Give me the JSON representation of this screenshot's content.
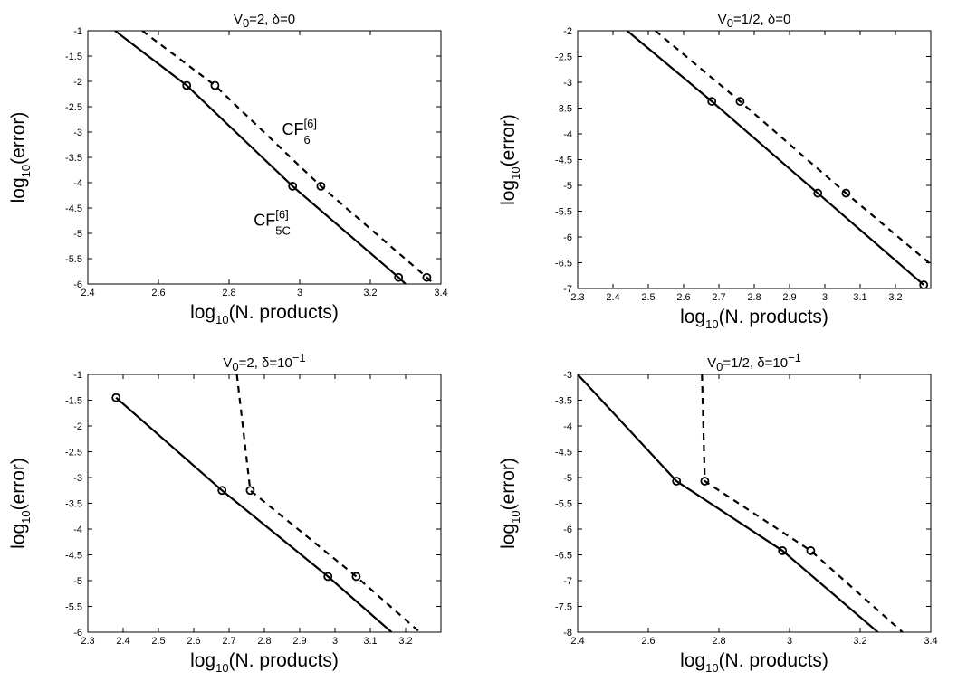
{
  "chart_data": [
    {
      "type": "line",
      "title": {
        "base": "V",
        "sub": "0",
        "rest": "=2,  δ=0"
      },
      "xlabel": {
        "base": "log",
        "sub": "10",
        "rest": "(N. products)"
      },
      "ylabel": {
        "base": "log",
        "sub": "10",
        "rest": "(error)"
      },
      "xlim": [
        2.4,
        3.4
      ],
      "ylim": [
        -6,
        -1
      ],
      "xticks": [
        "2.4",
        "2.6",
        "2.8",
        "3",
        "3.2",
        "3.4"
      ],
      "yticks": [
        "-1",
        "-1.5",
        "-2",
        "-2.5",
        "-3",
        "-3.5",
        "-4",
        "-4.5",
        "-5",
        "-5.5",
        "-6"
      ],
      "series": [
        {
          "name": "CF[6] 5C",
          "style": "solid",
          "x": [
            2.477,
            2.68,
            2.98,
            3.28,
            3.3
          ],
          "y": [
            -1.0,
            -2.08,
            -4.07,
            -5.87,
            -6.0
          ],
          "markers": [
            1,
            2,
            3
          ]
        },
        {
          "name": "CF[6] 6",
          "style": "dashed",
          "x": [
            2.554,
            2.76,
            3.06,
            3.36,
            3.38
          ],
          "y": [
            -1.0,
            -2.08,
            -4.07,
            -5.87,
            -6.0
          ],
          "markers": [
            1,
            2,
            3
          ]
        }
      ],
      "annotations": [
        {
          "base": "CF",
          "sup": "[6]",
          "sub": "6",
          "x": 2.95,
          "y": -3.05
        },
        {
          "base": "CF",
          "sup": "[6]",
          "sub": "5C",
          "x": 2.87,
          "y": -4.85
        }
      ]
    },
    {
      "type": "line",
      "title": {
        "base": "V",
        "sub": "0",
        "rest": "=1/2,  δ=0"
      },
      "xlabel": {
        "base": "log",
        "sub": "10",
        "rest": "(N. products)"
      },
      "ylabel": {
        "base": "log",
        "sub": "10",
        "rest": "(error)"
      },
      "xlim": [
        2.3,
        3.3
      ],
      "ylim": [
        -7,
        -2
      ],
      "xticks": [
        "2.3",
        "2.4",
        "2.5",
        "2.6",
        "2.7",
        "2.8",
        "2.9",
        "3",
        "3.1",
        "3.2"
      ],
      "yticks": [
        "-2",
        "-2.5",
        "-3",
        "-3.5",
        "-4",
        "-4.5",
        "-5",
        "-5.5",
        "-6",
        "-6.5",
        "-7"
      ],
      "series": [
        {
          "name": "CF[6] 5C",
          "style": "solid",
          "x": [
            2.44,
            2.68,
            2.98,
            3.28
          ],
          "y": [
            -2.0,
            -3.37,
            -5.15,
            -6.93
          ],
          "markers": [
            1,
            2,
            3
          ]
        },
        {
          "name": "CF[6] 6",
          "style": "dashed",
          "x": [
            2.52,
            2.76,
            3.06,
            3.3
          ],
          "y": [
            -2.0,
            -3.37,
            -5.15,
            -6.53
          ],
          "markers": [
            1,
            2
          ]
        }
      ],
      "annotations": []
    },
    {
      "type": "line",
      "title": {
        "base": "V",
        "sub": "0",
        "rest": "=2,  δ=10",
        "sup": "−1"
      },
      "xlabel": {
        "base": "log",
        "sub": "10",
        "rest": "(N. products)"
      },
      "ylabel": {
        "base": "log",
        "sub": "10",
        "rest": "(error)"
      },
      "xlim": [
        2.3,
        3.3
      ],
      "ylim": [
        -6,
        -1
      ],
      "xticks": [
        "2.3",
        "2.4",
        "2.5",
        "2.6",
        "2.7",
        "2.8",
        "2.9",
        "3",
        "3.1",
        "3.2"
      ],
      "yticks": [
        "-1",
        "-1.5",
        "-2",
        "-2.5",
        "-3",
        "-3.5",
        "-4",
        "-4.5",
        "-5",
        "-5.5",
        "-6"
      ],
      "series": [
        {
          "name": "CF[6] 5C",
          "style": "solid",
          "x": [
            2.38,
            2.68,
            2.98,
            3.16
          ],
          "y": [
            -1.45,
            -3.25,
            -4.92,
            -6.0
          ],
          "markers": [
            0,
            1,
            2
          ]
        },
        {
          "name": "CF[6] 6",
          "style": "dashed",
          "x": [
            2.722,
            2.76,
            3.06,
            3.24
          ],
          "y": [
            -1.0,
            -3.25,
            -4.92,
            -6.0
          ],
          "markers": [
            1,
            2
          ]
        }
      ],
      "annotations": []
    },
    {
      "type": "line",
      "title": {
        "base": "V",
        "sub": "0",
        "rest": "=1/2,  δ=10",
        "sup": "−1"
      },
      "xlabel": {
        "base": "log",
        "sub": "10",
        "rest": "(N. products)"
      },
      "ylabel": {
        "base": "log",
        "sub": "10",
        "rest": "(error)"
      },
      "xlim": [
        2.4,
        3.4
      ],
      "ylim": [
        -8,
        -3
      ],
      "xticks": [
        "2.4",
        "2.6",
        "2.8",
        "3",
        "3.2",
        "3.4"
      ],
      "yticks": [
        "-3",
        "-3.5",
        "-4",
        "-4.5",
        "-5",
        "-5.5",
        "-6",
        "-6.5",
        "-7",
        "-7.5",
        "-8"
      ],
      "series": [
        {
          "name": "CF[6] 5C",
          "style": "solid",
          "x": [
            2.4,
            2.68,
            2.98,
            3.25
          ],
          "y": [
            -3.0,
            -5.07,
            -6.42,
            -8.0
          ],
          "markers": [
            1,
            2
          ]
        },
        {
          "name": "CF[6] 6",
          "style": "dashed",
          "x": [
            2.752,
            2.76,
            3.06,
            3.32
          ],
          "y": [
            -3.0,
            -5.07,
            -6.42,
            -8.0
          ],
          "markers": [
            1,
            2
          ]
        }
      ],
      "annotations": []
    }
  ]
}
